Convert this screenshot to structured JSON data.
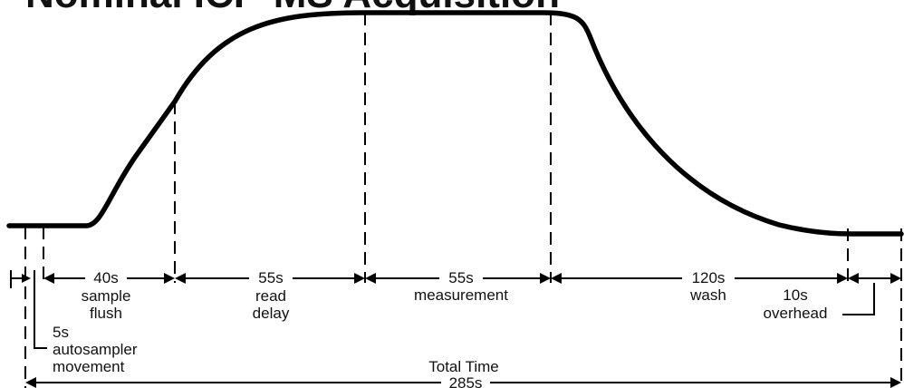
{
  "title": "Nominal ICP-MS Acquisition",
  "segments": [
    {
      "duration": "40s",
      "line1": "sample",
      "line2": "flush"
    },
    {
      "duration": "55s",
      "line1": "read",
      "line2": "delay"
    },
    {
      "duration": "55s",
      "line1": "measurement",
      "line2": ""
    },
    {
      "duration": "120s",
      "line1": "wash",
      "line2": ""
    }
  ],
  "overhead": {
    "duration": "10s",
    "label": "overhead"
  },
  "autosampler": {
    "duration": "5s",
    "line1": "autosampler",
    "line2": "movement"
  },
  "total": {
    "label": "Total Time",
    "duration": "285s"
  }
}
